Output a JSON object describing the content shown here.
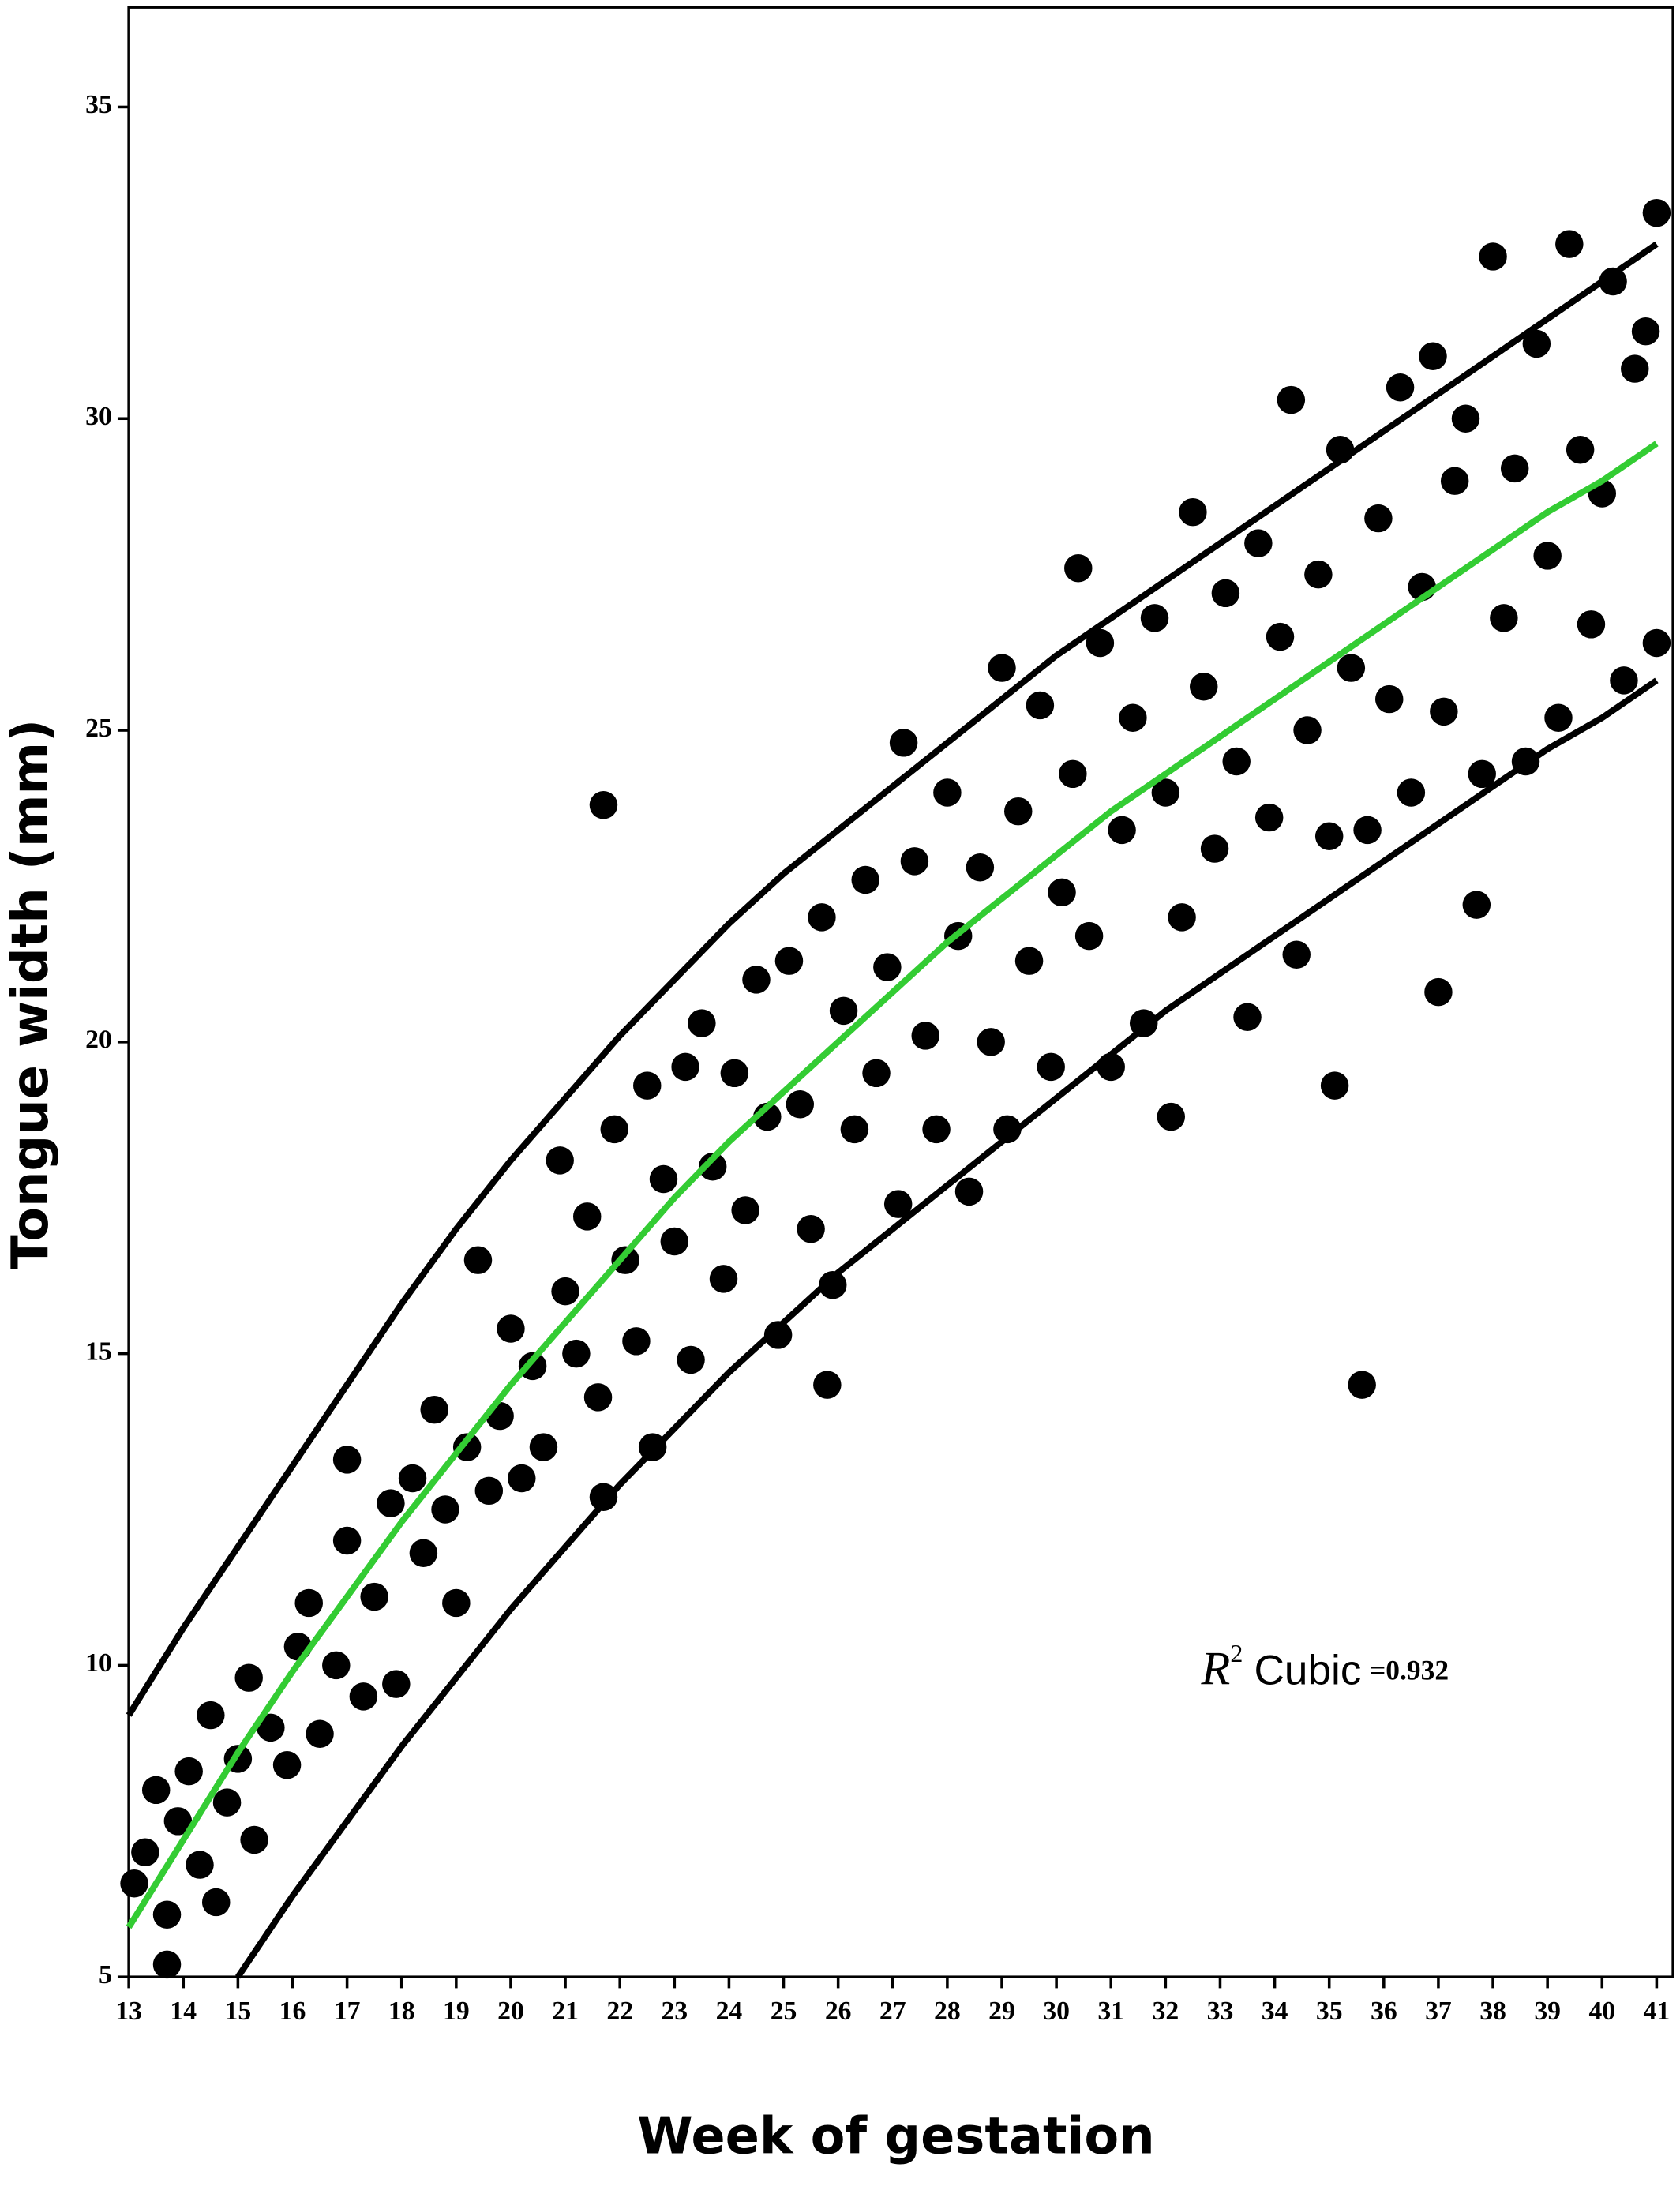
{
  "chart_data": {
    "type": "scatter",
    "x_label": "Week of gestation",
    "y_label": "Tongue width (mm)",
    "annotation": [
      "R",
      "2",
      "Cubic",
      "=0.932"
    ],
    "xlim": [
      13,
      41.3
    ],
    "ylim": [
      5,
      36.6
    ],
    "xticks": [
      13,
      14,
      15,
      16,
      17,
      18,
      19,
      20,
      21,
      22,
      23,
      24,
      25,
      26,
      27,
      28,
      29,
      30,
      31,
      32,
      33,
      34,
      35,
      36,
      37,
      38,
      39,
      40,
      41
    ],
    "yticks": [
      5,
      10,
      15,
      20,
      25,
      30,
      35
    ],
    "color": "#000000",
    "x": [
      13.1,
      13.3,
      13.5,
      13.7,
      13.7,
      13.9,
      14.1,
      14.3,
      14.5,
      14.6,
      14.8,
      15.0,
      15.2,
      15.3,
      15.6,
      15.9,
      16.1,
      16.3,
      16.5,
      16.8,
      17.0,
      17.0,
      17.3,
      17.5,
      17.8,
      17.9,
      18.2,
      18.4,
      18.6,
      18.8,
      19.0,
      19.2,
      19.4,
      19.6,
      19.8,
      20.0,
      20.2,
      20.4,
      20.6,
      20.9,
      21.0,
      21.2,
      21.4,
      21.6,
      21.7,
      21.7,
      21.9,
      22.1,
      22.3,
      22.5,
      22.6,
      22.8,
      23.0,
      23.2,
      23.3,
      23.5,
      23.7,
      23.9,
      24.1,
      24.3,
      24.5,
      24.7,
      24.9,
      25.1,
      25.3,
      25.5,
      25.7,
      25.8,
      25.9,
      26.1,
      26.3,
      26.5,
      26.7,
      26.9,
      27.1,
      27.2,
      27.4,
      27.6,
      27.8,
      28.0,
      28.2,
      28.4,
      28.6,
      28.8,
      29.0,
      29.1,
      29.3,
      29.5,
      29.7,
      29.9,
      30.1,
      30.3,
      30.4,
      30.6,
      30.8,
      31.0,
      31.2,
      31.4,
      31.6,
      31.8,
      32.0,
      32.1,
      32.3,
      32.5,
      32.7,
      32.9,
      33.1,
      33.3,
      33.5,
      33.7,
      33.9,
      34.1,
      34.3,
      34.4,
      34.6,
      34.8,
      35.0,
      35.1,
      35.2,
      35.4,
      35.6,
      35.7,
      35.9,
      36.1,
      36.3,
      36.5,
      36.7,
      36.9,
      37.0,
      37.1,
      37.3,
      37.5,
      37.7,
      37.8,
      38.0,
      38.2,
      38.4,
      38.6,
      38.8,
      39.0,
      39.2,
      39.4,
      39.6,
      39.8,
      40.0,
      40.2,
      40.4,
      40.6,
      40.8,
      41.0,
      41.0
    ],
    "values": [
      6.5,
      7.0,
      8.0,
      6.0,
      5.2,
      7.5,
      8.3,
      6.8,
      9.2,
      6.2,
      7.8,
      8.5,
      9.8,
      7.2,
      9.0,
      8.4,
      10.3,
      11.0,
      8.9,
      10.0,
      12.0,
      13.3,
      9.5,
      11.1,
      12.6,
      9.7,
      13.0,
      11.8,
      14.1,
      12.5,
      11.0,
      13.5,
      16.5,
      12.8,
      14.0,
      15.4,
      13.0,
      14.8,
      13.5,
      18.1,
      16.0,
      15.0,
      17.2,
      14.3,
      12.7,
      23.8,
      18.6,
      16.5,
      15.2,
      19.3,
      13.5,
      17.8,
      16.8,
      19.6,
      14.9,
      20.3,
      18.0,
      16.2,
      19.5,
      17.3,
      21.0,
      18.8,
      15.3,
      21.3,
      19.0,
      17.0,
      22.0,
      14.5,
      16.1,
      20.5,
      18.6,
      22.6,
      19.5,
      21.2,
      17.4,
      24.8,
      22.9,
      20.1,
      18.6,
      24.0,
      21.7,
      17.6,
      22.8,
      20.0,
      26.0,
      18.6,
      23.7,
      21.3,
      25.4,
      19.6,
      22.4,
      24.3,
      27.6,
      21.7,
      26.4,
      19.6,
      23.4,
      25.2,
      20.3,
      26.8,
      24.0,
      18.8,
      22.0,
      28.5,
      25.7,
      23.1,
      27.2,
      24.5,
      20.4,
      28.0,
      23.6,
      26.5,
      30.3,
      21.4,
      25.0,
      27.5,
      23.3,
      19.3,
      29.5,
      26.0,
      14.5,
      23.4,
      28.4,
      25.5,
      30.5,
      24.0,
      27.3,
      31.0,
      20.8,
      25.3,
      29.0,
      30.0,
      22.2,
      24.3,
      32.6,
      26.8,
      29.2,
      24.5,
      31.2,
      27.8,
      25.2,
      32.8,
      29.5,
      26.7,
      28.8,
      32.2,
      25.8,
      30.8,
      31.4,
      26.4,
      33.3
    ],
    "lines": [
      {
        "color": "#000000",
        "x": [
          13,
          14,
          15,
          16,
          17,
          18,
          19,
          20,
          21,
          22,
          23,
          24,
          25,
          26,
          27,
          28,
          29,
          30,
          31,
          32,
          33,
          34,
          35,
          36,
          37,
          38,
          39,
          40,
          41
        ],
        "values": [
          9.2,
          10.6,
          11.9,
          13.2,
          14.5,
          15.8,
          17.0,
          18.1,
          19.1,
          20.1,
          21.0,
          21.9,
          22.7,
          23.4,
          24.1,
          24.8,
          25.5,
          26.2,
          26.8,
          27.4,
          28.0,
          28.6,
          29.2,
          29.8,
          30.4,
          31.0,
          31.6,
          32.2,
          32.8
        ]
      },
      {
        "color": "#000000",
        "x": [
          15,
          16,
          17,
          18,
          19,
          20,
          21,
          22,
          23,
          24,
          25,
          26,
          27,
          28,
          29,
          30,
          31,
          32,
          33,
          34,
          35,
          36,
          37,
          38,
          39,
          40,
          41
        ],
        "values": [
          5.0,
          6.3,
          7.5,
          8.7,
          9.8,
          10.9,
          11.9,
          12.9,
          13.8,
          14.7,
          15.5,
          16.3,
          17.0,
          17.7,
          18.4,
          19.1,
          19.8,
          20.5,
          21.1,
          21.7,
          22.3,
          22.9,
          23.5,
          24.1,
          24.7,
          25.2,
          25.8
        ]
      },
      {
        "color": "#33cc33",
        "x": [
          13,
          14,
          15,
          16,
          17,
          18,
          19,
          20,
          21,
          22,
          23,
          24,
          25,
          26,
          27,
          28,
          29,
          30,
          31,
          32,
          33,
          34,
          35,
          36,
          37,
          38,
          39,
          40,
          41
        ],
        "values": [
          5.8,
          7.2,
          8.6,
          9.9,
          11.1,
          12.3,
          13.4,
          14.5,
          15.5,
          16.5,
          17.5,
          18.4,
          19.2,
          20.0,
          20.8,
          21.6,
          22.3,
          23.0,
          23.7,
          24.3,
          24.9,
          25.5,
          26.1,
          26.7,
          27.3,
          27.9,
          28.5,
          29.0,
          29.6
        ]
      }
    ]
  }
}
